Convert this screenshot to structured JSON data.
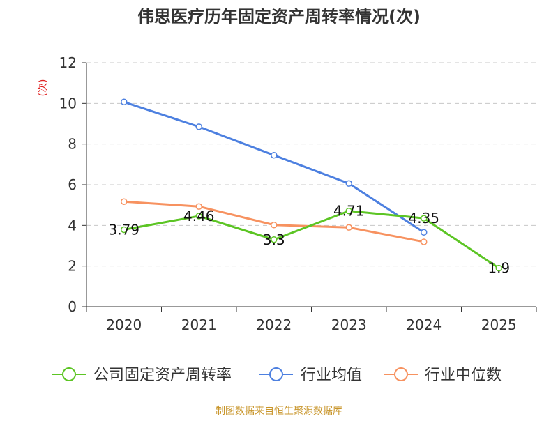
{
  "chart_data": {
    "type": "line",
    "title": "伟思医疗历年固定资产周转率情况(次)",
    "ylabel": "(次)",
    "xlabel": "",
    "categories": [
      "2020",
      "2021",
      "2022",
      "2023",
      "2024",
      "2025"
    ],
    "ylim": [
      0,
      12
    ],
    "yticks": [
      0,
      2,
      4,
      6,
      8,
      10,
      12
    ],
    "grid": true,
    "legend_position": "bottom",
    "series": [
      {
        "name": "公司固定资产周转率",
        "color": "#5cc524",
        "values": [
          3.79,
          4.46,
          3.3,
          4.71,
          4.35,
          1.9
        ],
        "labels": [
          "3.79",
          "4.46",
          "3.3",
          "4.71",
          "4.35",
          "1.9"
        ]
      },
      {
        "name": "行业均值",
        "color": "#4d80e0",
        "values": [
          10.07,
          8.85,
          7.45,
          6.06,
          3.66,
          null
        ]
      },
      {
        "name": "行业中位数",
        "color": "#f79260",
        "values": [
          5.17,
          4.93,
          4.02,
          3.9,
          3.19,
          null
        ]
      }
    ]
  },
  "source": "制图数据来自恒生聚源数据库"
}
